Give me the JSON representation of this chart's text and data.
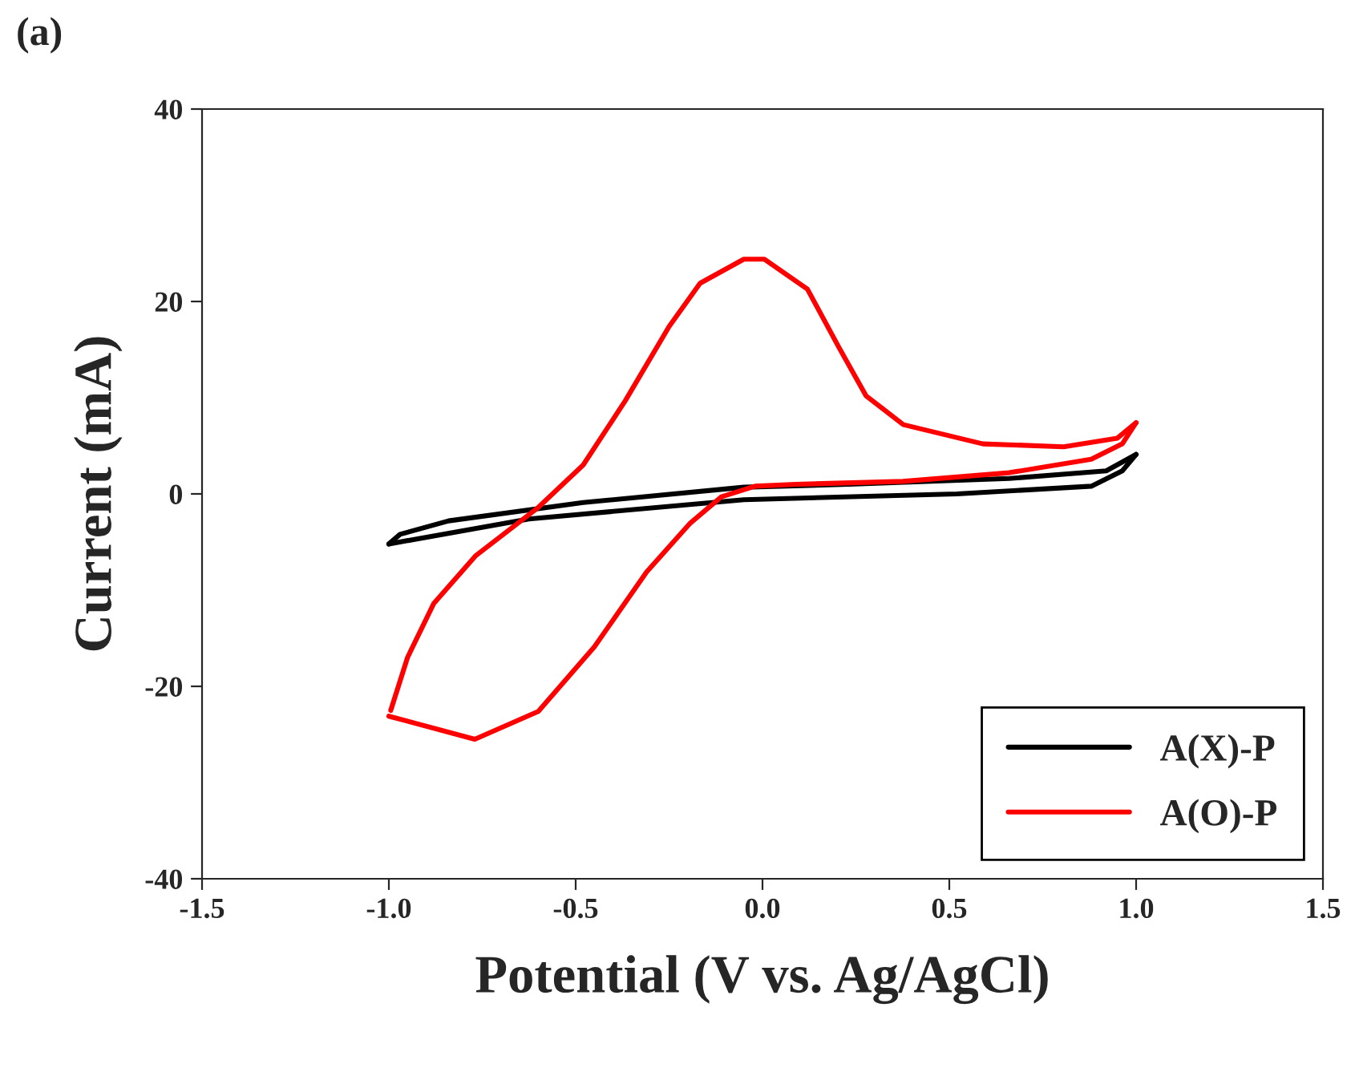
{
  "chart_data": {
    "type": "line",
    "title": "(a)",
    "xlabel": "Potential (V vs. Ag/AgCl)",
    "ylabel": "Current (mA)",
    "xlim": [
      -1.5,
      1.5
    ],
    "xticks": [
      {
        "value": -1.5,
        "label": "-1.5"
      },
      {
        "value": -1.0,
        "label": "-1.0"
      },
      {
        "value": -0.5,
        "label": "-0.5"
      },
      {
        "value": 0.0,
        "label": "0.0"
      },
      {
        "value": 0.5,
        "label": "0.5"
      },
      {
        "value": 1.0,
        "label": "1.0"
      },
      {
        "value": 1.5,
        "label": "1.5"
      }
    ],
    "ylim": [
      -40,
      40
    ],
    "yticks": [
      -40,
      -20,
      0,
      20,
      40
    ],
    "grid": false,
    "legend": "bottom right",
    "marker": "none",
    "line_style": "solid",
    "series": [
      {
        "name": "A(X)-P",
        "color": "#000000",
        "x": [
          -1.0,
          -0.625,
          -0.05,
          0.52,
          0.88,
          0.963,
          1.0
        ],
        "values": [
          -5.2,
          -2.6,
          -0.6,
          0.0,
          0.8,
          2.4,
          4.1
        ]
      },
      {
        "color": "#000000",
        "x": [
          -1.0,
          -0.97,
          -0.84,
          -0.48,
          -0.05,
          0.23,
          0.66,
          0.92,
          1.0
        ],
        "values": [
          -5.2,
          -4.2,
          -2.8,
          -0.9,
          0.7,
          1.0,
          1.6,
          2.4,
          4.1
        ]
      },
      {
        "name": "A(O)-P",
        "color": "#ff0000",
        "x": [
          -1.0,
          -0.77,
          -0.6,
          -0.45,
          -0.31,
          -0.195,
          -0.11,
          -0.02,
          0.09,
          0.376,
          0.66,
          0.88,
          0.963,
          1.0
        ],
        "values": [
          -23.1,
          -25.5,
          -22.6,
          -15.9,
          -8.1,
          -3.1,
          -0.3,
          0.8,
          1.0,
          1.3,
          2.2,
          3.6,
          5.2,
          7.4
        ]
      },
      {
        "color": "#ff0000",
        "x": [
          -0.995,
          -0.95,
          -0.88,
          -0.767,
          -0.6,
          -0.48,
          -0.367,
          -0.25,
          -0.167,
          -0.05,
          0.005,
          0.12,
          0.205,
          0.277,
          0.377,
          0.59,
          0.806,
          0.95,
          1.0
        ],
        "values": [
          -22.5,
          -17.0,
          -11.4,
          -6.4,
          -1.4,
          3.0,
          9.7,
          17.4,
          21.9,
          24.4,
          24.4,
          21.3,
          15.2,
          10.2,
          7.2,
          5.2,
          4.9,
          5.8,
          7.4
        ]
      }
    ]
  }
}
